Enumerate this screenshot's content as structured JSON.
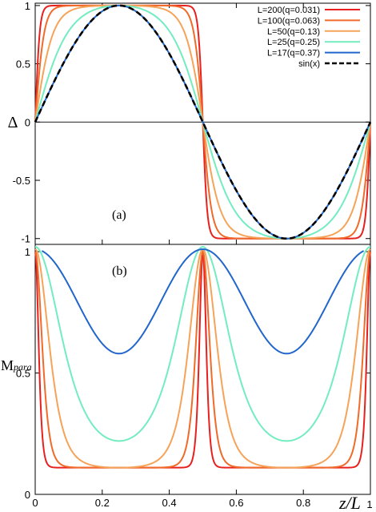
{
  "chart_data": [
    {
      "type": "line",
      "panel_label": "(a)",
      "ylabel": "Δ",
      "xlim": [
        0,
        1
      ],
      "ylim": [
        -1.05,
        1.02
      ],
      "yticks": [
        "-1",
        "-0.5",
        "0",
        "0.5",
        "1"
      ],
      "ytick_values": [
        -1,
        -0.5,
        0,
        0.5,
        1
      ],
      "zero_line": true,
      "legend": {
        "placement": "top-right"
      },
      "series": [
        {
          "name": "L=200(q=0.031)",
          "color": "#e8201e",
          "shape": "tanh_sine",
          "sharpness": 12.0
        },
        {
          "name": "L=100(q=0.063)",
          "color": "#f06a2a",
          "shape": "tanh_sine",
          "sharpness": 6.0
        },
        {
          "name": "L=50(q=0.13)",
          "color": "#f6a35a",
          "shape": "tanh_sine",
          "sharpness": 3.0
        },
        {
          "name": "L=25(q=0.25)",
          "color": "#73ecc0",
          "shape": "tanh_sine",
          "sharpness": 1.5
        },
        {
          "name": "L=17(q=0.37)",
          "color": "#2266cc",
          "shape": "tanh_sine",
          "sharpness": 0.02
        },
        {
          "name": "sin(x)",
          "color": "#000000",
          "shape": "sine",
          "dashed": true
        }
      ]
    },
    {
      "type": "line",
      "panel_label": "(b)",
      "ylabel": "M",
      "ylabel_sub": "para",
      "xlabel": "z/L",
      "xlim": [
        0,
        1
      ],
      "ylim": [
        0,
        1.03
      ],
      "xticks": [
        "0",
        "0.2",
        "0.4",
        "0.6",
        "0.8",
        "1"
      ],
      "xtick_values": [
        0,
        0.2,
        0.4,
        0.6,
        0.8,
        1
      ],
      "yticks": [
        "0",
        "0.5",
        "1"
      ],
      "ytick_values": [
        0,
        0.5,
        1
      ],
      "series": [
        {
          "name": "L=200(q=0.031)",
          "color": "#e8201e",
          "min": 0.11,
          "max": 1.0,
          "sharpness": 12.0,
          "x_start": 0.0
        },
        {
          "name": "L=100(q=0.063)",
          "color": "#f06a2a",
          "min": 0.11,
          "max": 1.0,
          "sharpness": 6.0,
          "x_start": 0.0
        },
        {
          "name": "L=50(q=0.13)",
          "color": "#f6a35a",
          "min": 0.11,
          "max": 1.01,
          "sharpness": 3.0,
          "x_start": 0.0
        },
        {
          "name": "L=25(q=0.25)",
          "color": "#73ecc0",
          "min": 0.22,
          "max": 1.02,
          "sharpness": 1.5,
          "x_start": 0.0
        },
        {
          "name": "L=17(q=0.37)",
          "color": "#2266cc",
          "min": 0.58,
          "max": 1.01,
          "sharpness": 0.02,
          "x_start": 0.02
        }
      ]
    }
  ]
}
